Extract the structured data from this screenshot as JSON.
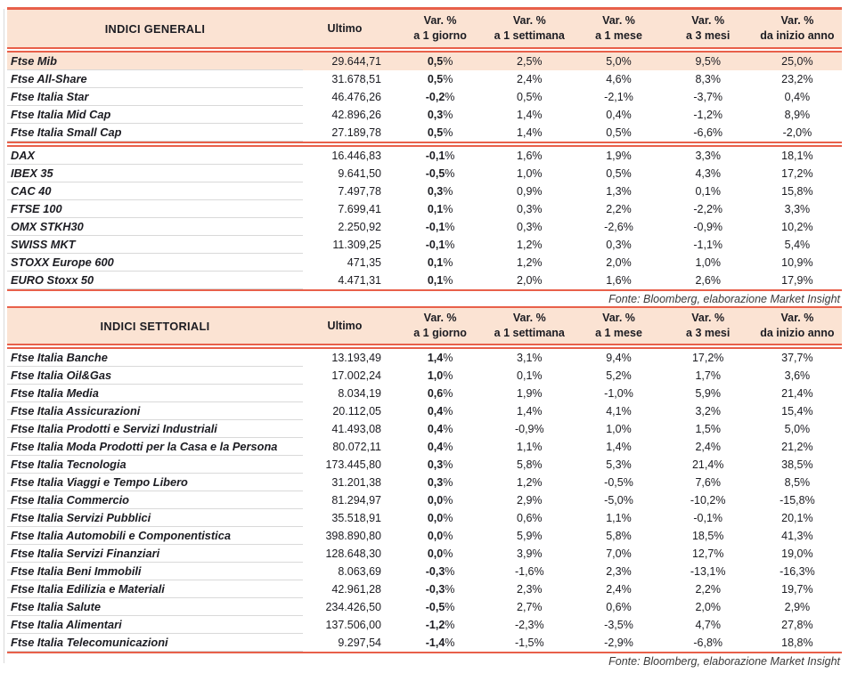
{
  "source_note": "Fonte: Bloomberg, elaborazione Market Insight",
  "colors": {
    "accent_red": "#e8604a",
    "header_peach": "#fbe3d3",
    "text_ink": "#1c1c22",
    "row_divider_gray": "#d9d9d9"
  },
  "columns": {
    "ultimo": "Ultimo",
    "var_cols": [
      {
        "line1": "Var. %",
        "line2": "a 1 giorno"
      },
      {
        "line1": "Var. %",
        "line2": "a 1 settimana"
      },
      {
        "line1": "Var. %",
        "line2": "a 1 mese"
      },
      {
        "line1": "Var. %",
        "line2": "a 3 mesi"
      },
      {
        "line1": "Var. %",
        "line2": "da inizio anno"
      }
    ]
  },
  "tables": [
    {
      "title": "INDICI GENERALI",
      "groups": [
        {
          "rows": [
            {
              "name": "Ftse Mib",
              "ultimo": "29.644,71",
              "d1": "0,5%",
              "w1": "2,5%",
              "m1": "5,0%",
              "m3": "9,5%",
              "ytd": "25,0%",
              "highlight": true
            },
            {
              "name": "Ftse All-Share",
              "ultimo": "31.678,51",
              "d1": "0,5%",
              "w1": "2,4%",
              "m1": "4,6%",
              "m3": "8,3%",
              "ytd": "23,2%"
            },
            {
              "name": "Ftse Italia Star",
              "ultimo": "46.476,26",
              "d1": "-0,2%",
              "w1": "0,5%",
              "m1": "-2,1%",
              "m3": "-3,7%",
              "ytd": "0,4%"
            },
            {
              "name": "Ftse Italia Mid Cap",
              "ultimo": "42.896,26",
              "d1": "0,3%",
              "w1": "1,4%",
              "m1": "0,4%",
              "m3": "-1,2%",
              "ytd": "8,9%"
            },
            {
              "name": "Ftse Italia Small Cap",
              "ultimo": "27.189,78",
              "d1": "0,5%",
              "w1": "1,4%",
              "m1": "0,5%",
              "m3": "-6,6%",
              "ytd": "-2,0%"
            }
          ]
        },
        {
          "rows": [
            {
              "name": "DAX",
              "ultimo": "16.446,83",
              "d1": "-0,1%",
              "w1": "1,6%",
              "m1": "1,9%",
              "m3": "3,3%",
              "ytd": "18,1%"
            },
            {
              "name": "IBEX 35",
              "ultimo": "9.641,50",
              "d1": "-0,5%",
              "w1": "1,0%",
              "m1": "0,5%",
              "m3": "4,3%",
              "ytd": "17,2%"
            },
            {
              "name": "CAC 40",
              "ultimo": "7.497,78",
              "d1": "0,3%",
              "w1": "0,9%",
              "m1": "1,3%",
              "m3": "0,1%",
              "ytd": "15,8%"
            },
            {
              "name": "FTSE 100",
              "ultimo": "7.699,41",
              "d1": "0,1%",
              "w1": "0,3%",
              "m1": "2,2%",
              "m3": "-2,2%",
              "ytd": "3,3%"
            },
            {
              "name": "OMX STKH30",
              "ultimo": "2.250,92",
              "d1": "-0,1%",
              "w1": "0,3%",
              "m1": "-2,6%",
              "m3": "-0,9%",
              "ytd": "10,2%"
            },
            {
              "name": "SWISS MKT",
              "ultimo": "11.309,25",
              "d1": "-0,1%",
              "w1": "1,2%",
              "m1": "0,3%",
              "m3": "-1,1%",
              "ytd": "5,4%"
            },
            {
              "name": "STOXX Europe 600",
              "ultimo": "471,35",
              "d1": "0,1%",
              "w1": "1,2%",
              "m1": "2,0%",
              "m3": "1,0%",
              "ytd": "10,9%"
            },
            {
              "name": "EURO Stoxx 50",
              "ultimo": "4.471,31",
              "d1": "0,1%",
              "w1": "2,0%",
              "m1": "1,6%",
              "m3": "2,6%",
              "ytd": "17,9%"
            }
          ]
        }
      ]
    },
    {
      "title": "INDICI SETTORIALI",
      "groups": [
        {
          "rows": [
            {
              "name": "Ftse Italia Banche",
              "ultimo": "13.193,49",
              "d1": "1,4%",
              "w1": "3,1%",
              "m1": "9,4%",
              "m3": "17,2%",
              "ytd": "37,7%"
            },
            {
              "name": "Ftse Italia Oil&Gas",
              "ultimo": "17.002,24",
              "d1": "1,0%",
              "w1": "0,1%",
              "m1": "5,2%",
              "m3": "1,7%",
              "ytd": "3,6%"
            },
            {
              "name": "Ftse Italia Media",
              "ultimo": "8.034,19",
              "d1": "0,6%",
              "w1": "1,9%",
              "m1": "-1,0%",
              "m3": "5,9%",
              "ytd": "21,4%"
            },
            {
              "name": "Ftse Italia Assicurazioni",
              "ultimo": "20.112,05",
              "d1": "0,4%",
              "w1": "1,4%",
              "m1": "4,1%",
              "m3": "3,2%",
              "ytd": "15,4%"
            },
            {
              "name": "Ftse Italia Prodotti e Servizi Industriali",
              "ultimo": "41.493,08",
              "d1": "0,4%",
              "w1": "-0,9%",
              "m1": "1,0%",
              "m3": "1,5%",
              "ytd": "5,0%"
            },
            {
              "name": "Ftse Italia Moda Prodotti per la Casa e la Persona",
              "ultimo": "80.072,11",
              "d1": "0,4%",
              "w1": "1,1%",
              "m1": "1,4%",
              "m3": "2,4%",
              "ytd": "21,2%"
            },
            {
              "name": "Ftse Italia Tecnologia",
              "ultimo": "173.445,80",
              "d1": "0,3%",
              "w1": "5,8%",
              "m1": "5,3%",
              "m3": "21,4%",
              "ytd": "38,5%"
            },
            {
              "name": "Ftse Italia Viaggi e Tempo Libero",
              "ultimo": "31.201,38",
              "d1": "0,3%",
              "w1": "1,2%",
              "m1": "-0,5%",
              "m3": "7,6%",
              "ytd": "8,5%"
            },
            {
              "name": "Ftse Italia Commercio",
              "ultimo": "81.294,97",
              "d1": "0,0%",
              "w1": "2,9%",
              "m1": "-5,0%",
              "m3": "-10,2%",
              "ytd": "-15,8%"
            },
            {
              "name": "Ftse Italia Servizi Pubblici",
              "ultimo": "35.518,91",
              "d1": "0,0%",
              "w1": "0,6%",
              "m1": "1,1%",
              "m3": "-0,1%",
              "ytd": "20,1%"
            },
            {
              "name": "Ftse Italia Automobili e Componentistica",
              "ultimo": "398.890,80",
              "d1": "0,0%",
              "w1": "5,9%",
              "m1": "5,8%",
              "m3": "18,5%",
              "ytd": "41,3%"
            },
            {
              "name": "Ftse Italia Servizi Finanziari",
              "ultimo": "128.648,30",
              "d1": "0,0%",
              "w1": "3,9%",
              "m1": "7,0%",
              "m3": "12,7%",
              "ytd": "19,0%"
            },
            {
              "name": "Ftse Italia Beni Immobili",
              "ultimo": "8.063,69",
              "d1": "-0,3%",
              "w1": "-1,6%",
              "m1": "2,3%",
              "m3": "-13,1%",
              "ytd": "-16,3%"
            },
            {
              "name": "Ftse Italia Edilizia e Materiali",
              "ultimo": "42.961,28",
              "d1": "-0,3%",
              "w1": "2,3%",
              "m1": "2,4%",
              "m3": "2,2%",
              "ytd": "19,7%"
            },
            {
              "name": "Ftse Italia Salute",
              "ultimo": "234.426,50",
              "d1": "-0,5%",
              "w1": "2,7%",
              "m1": "0,6%",
              "m3": "2,0%",
              "ytd": "2,9%"
            },
            {
              "name": "Ftse Italia Alimentari",
              "ultimo": "137.506,00",
              "d1": "-1,2%",
              "w1": "-2,3%",
              "m1": "-3,5%",
              "m3": "4,7%",
              "ytd": "27,8%"
            },
            {
              "name": "Ftse Italia Telecomunicazioni",
              "ultimo": "9.297,54",
              "d1": "-1,4%",
              "w1": "-1,5%",
              "m1": "-2,9%",
              "m3": "-6,8%",
              "ytd": "18,8%"
            }
          ]
        }
      ]
    }
  ]
}
